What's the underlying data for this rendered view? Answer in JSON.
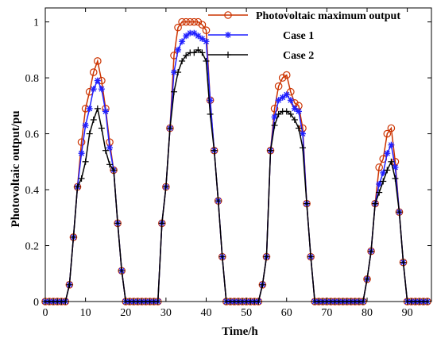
{
  "chart_data": {
    "type": "line",
    "xlabel": "Time/h",
    "ylabel": "Photovoltaic output/pu",
    "xlim": [
      0,
      96
    ],
    "ylim": [
      0,
      1.05
    ],
    "xticks": [
      0,
      10,
      20,
      30,
      40,
      50,
      60,
      70,
      80,
      90
    ],
    "yticks": [
      0,
      0.2,
      0.4,
      0.6,
      0.8,
      1
    ],
    "ytick_labels": [
      "0",
      "0.2",
      "0.4",
      "0.6",
      "0.8",
      "1"
    ],
    "grid": false,
    "legend_position": "top-right",
    "x": [
      0,
      1,
      2,
      3,
      4,
      5,
      6,
      7,
      8,
      9,
      10,
      11,
      12,
      13,
      14,
      15,
      16,
      17,
      18,
      19,
      20,
      21,
      22,
      23,
      24,
      25,
      26,
      27,
      28,
      29,
      30,
      31,
      32,
      33,
      34,
      35,
      36,
      37,
      38,
      39,
      40,
      41,
      42,
      43,
      44,
      45,
      46,
      47,
      48,
      49,
      50,
      51,
      52,
      53,
      54,
      55,
      56,
      57,
      58,
      59,
      60,
      61,
      62,
      63,
      64,
      65,
      66,
      67,
      68,
      69,
      70,
      71,
      72,
      73,
      74,
      75,
      76,
      77,
      78,
      79,
      80,
      81,
      82,
      83,
      84,
      85,
      86,
      87,
      88,
      89,
      90,
      91,
      92,
      93,
      94,
      95
    ],
    "series": [
      {
        "name": "Photovoltaic maximum output",
        "color": "#cc3300",
        "marker": "circle",
        "values": [
          0,
          0,
          0,
          0,
          0,
          0,
          0.06,
          0.23,
          0.41,
          0.57,
          0.69,
          0.75,
          0.82,
          0.86,
          0.79,
          0.69,
          0.57,
          0.47,
          0.28,
          0.11,
          0,
          0,
          0,
          0,
          0,
          0,
          0,
          0,
          0,
          0.28,
          0.41,
          0.62,
          0.88,
          0.98,
          1.0,
          1.0,
          1.0,
          1.0,
          1.0,
          0.99,
          0.97,
          0.72,
          0.54,
          0.36,
          0.16,
          0,
          0,
          0,
          0,
          0,
          0,
          0,
          0,
          0,
          0.06,
          0.16,
          0.54,
          0.69,
          0.77,
          0.8,
          0.81,
          0.75,
          0.71,
          0.7,
          0.62,
          0.35,
          0.16,
          0,
          0,
          0,
          0,
          0,
          0,
          0,
          0,
          0,
          0,
          0,
          0,
          0,
          0.08,
          0.18,
          0.35,
          0.48,
          0.51,
          0.6,
          0.62,
          0.5,
          0.32,
          0.14,
          0,
          0,
          0,
          0,
          0,
          0
        ]
      },
      {
        "name": "Case 1",
        "color": "#1f1fff",
        "marker": "star",
        "values": [
          0,
          0,
          0,
          0,
          0,
          0,
          0.06,
          0.23,
          0.41,
          0.53,
          0.63,
          0.69,
          0.76,
          0.79,
          0.76,
          0.68,
          0.55,
          0.47,
          0.28,
          0.11,
          0,
          0,
          0,
          0,
          0,
          0,
          0,
          0,
          0,
          0.28,
          0.41,
          0.62,
          0.82,
          0.9,
          0.93,
          0.95,
          0.96,
          0.96,
          0.95,
          0.94,
          0.93,
          0.72,
          0.54,
          0.36,
          0.16,
          0,
          0,
          0,
          0,
          0,
          0,
          0,
          0,
          0,
          0.06,
          0.16,
          0.54,
          0.66,
          0.72,
          0.73,
          0.74,
          0.72,
          0.69,
          0.68,
          0.6,
          0.35,
          0.16,
          0,
          0,
          0,
          0,
          0,
          0,
          0,
          0,
          0,
          0,
          0,
          0,
          0,
          0.08,
          0.18,
          0.35,
          0.42,
          0.46,
          0.53,
          0.56,
          0.48,
          0.32,
          0.14,
          0,
          0,
          0,
          0,
          0,
          0
        ]
      },
      {
        "name": "Case 2",
        "color": "#000000",
        "marker": "plus",
        "values": [
          0,
          0,
          0,
          0,
          0,
          0,
          0.06,
          0.23,
          0.41,
          0.44,
          0.5,
          0.6,
          0.65,
          0.69,
          0.62,
          0.54,
          0.49,
          0.47,
          0.28,
          0.11,
          0,
          0,
          0,
          0,
          0,
          0,
          0,
          0,
          0,
          0.28,
          0.41,
          0.62,
          0.75,
          0.82,
          0.86,
          0.88,
          0.89,
          0.89,
          0.9,
          0.89,
          0.86,
          0.67,
          0.54,
          0.36,
          0.16,
          0,
          0,
          0,
          0,
          0,
          0,
          0,
          0,
          0,
          0.06,
          0.16,
          0.54,
          0.63,
          0.67,
          0.68,
          0.68,
          0.67,
          0.65,
          0.62,
          0.55,
          0.35,
          0.16,
          0,
          0,
          0,
          0,
          0,
          0,
          0,
          0,
          0,
          0,
          0,
          0,
          0,
          0.08,
          0.18,
          0.35,
          0.39,
          0.43,
          0.47,
          0.5,
          0.44,
          0.32,
          0.14,
          0,
          0,
          0,
          0,
          0,
          0
        ]
      }
    ]
  }
}
